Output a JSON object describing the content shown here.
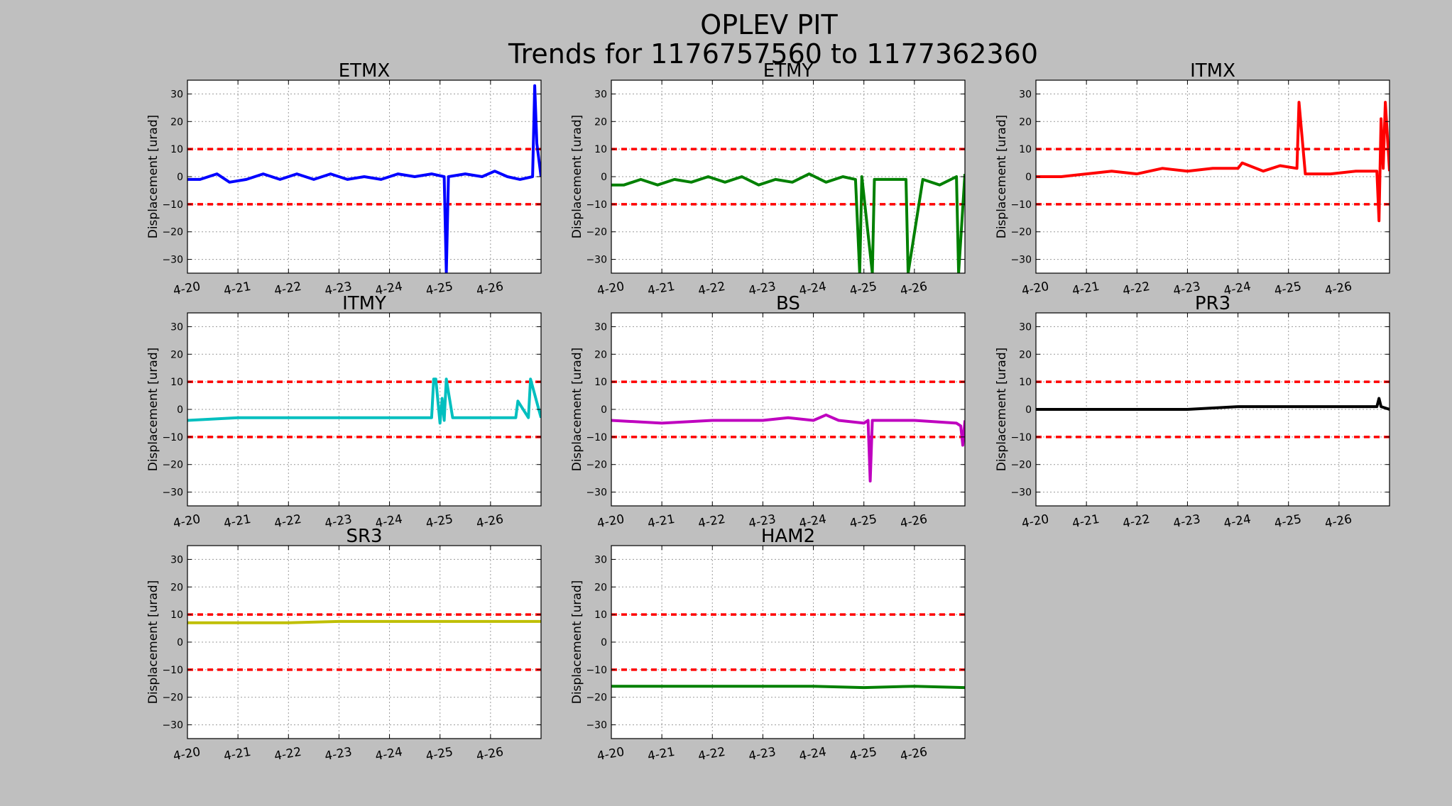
{
  "figure": {
    "title_line1": "OPLEV PIT",
    "title_line2": "Trends for 1176757560 to 1177362360",
    "background": "#bfbfbf",
    "threshold_color": "#ff0000"
  },
  "chart_data": [
    {
      "type": "line",
      "title": "ETMX",
      "color": "#0000ff",
      "ylabel": "Displacement [urad]",
      "ylim": [
        -35,
        35
      ],
      "xlim": [
        "4-20",
        "4-27"
      ],
      "yticks": [
        30,
        20,
        10,
        0,
        -10,
        -20,
        -30
      ],
      "xticks": [
        "4-20",
        "4-21",
        "4-22",
        "4-23",
        "4-24",
        "4-25",
        "4-26"
      ],
      "thresholds": [
        10,
        -10
      ],
      "grid": true,
      "x": [
        "4-20 00:00",
        "4-20 06:00",
        "4-20 14:00",
        "4-20 20:00",
        "4-21 04:00",
        "4-21 12:00",
        "4-21 20:00",
        "4-22 04:00",
        "4-22 12:00",
        "4-22 20:00",
        "4-23 04:00",
        "4-23 12:00",
        "4-23 20:00",
        "4-24 04:00",
        "4-24 12:00",
        "4-24 20:00",
        "4-25 02:00",
        "4-25 03:00",
        "4-25 04:00",
        "4-25 12:00",
        "4-25 20:00",
        "4-26 02:00",
        "4-26 08:00",
        "4-26 14:00",
        "4-26 20:00",
        "4-26 21:00",
        "4-26 22:00",
        "4-27 00:00"
      ],
      "y": [
        -1,
        -1,
        1,
        -2,
        -1,
        1,
        -1,
        1,
        -1,
        1,
        -1,
        0,
        -1,
        1,
        0,
        1,
        0,
        -35,
        0,
        1,
        0,
        2,
        0,
        -1,
        0,
        33,
        12,
        0
      ]
    },
    {
      "type": "line",
      "title": "ETMY",
      "color": "#008000",
      "ylabel": "Displacement [urad]",
      "ylim": [
        -35,
        35
      ],
      "xlim": [
        "4-20",
        "4-27"
      ],
      "yticks": [
        30,
        20,
        10,
        0,
        -10,
        -20,
        -30
      ],
      "xticks": [
        "4-20",
        "4-21",
        "4-22",
        "4-23",
        "4-24",
        "4-25",
        "4-26"
      ],
      "thresholds": [
        10,
        -10
      ],
      "grid": true,
      "x": [
        "4-20 00:00",
        "4-20 06:00",
        "4-20 14:00",
        "4-20 22:00",
        "4-21 06:00",
        "4-21 14:00",
        "4-21 22:00",
        "4-22 06:00",
        "4-22 14:00",
        "4-22 22:00",
        "4-23 06:00",
        "4-23 14:00",
        "4-23 22:00",
        "4-24 06:00",
        "4-24 14:00",
        "4-24 20:00",
        "4-24 22:00",
        "4-24 23:00",
        "4-25 04:00",
        "4-25 05:00",
        "4-25 20:00",
        "4-25 21:00",
        "4-26 04:00",
        "4-26 12:00",
        "4-26 20:00",
        "4-26 21:00",
        "4-27 00:00"
      ],
      "y": [
        -3,
        -3,
        -1,
        -3,
        -1,
        -2,
        0,
        -2,
        0,
        -3,
        -1,
        -2,
        1,
        -2,
        0,
        -1,
        -35,
        0,
        -35,
        -1,
        -1,
        -35,
        -1,
        -3,
        0,
        -35,
        1
      ]
    },
    {
      "type": "line",
      "title": "ITMX",
      "color": "#ff0000",
      "ylabel": "Displacement [urad]",
      "ylim": [
        -35,
        35
      ],
      "xlim": [
        "4-20",
        "4-27"
      ],
      "yticks": [
        30,
        20,
        10,
        0,
        -10,
        -20,
        -30
      ],
      "xticks": [
        "4-20",
        "4-21",
        "4-22",
        "4-23",
        "4-24",
        "4-25",
        "4-26"
      ],
      "thresholds": [
        10,
        -10
      ],
      "grid": true,
      "x": [
        "4-20 00:00",
        "4-20 12:00",
        "4-21 00:00",
        "4-21 12:00",
        "4-22 00:00",
        "4-22 12:00",
        "4-23 00:00",
        "4-23 12:00",
        "4-24 00:00",
        "4-24 02:00",
        "4-24 12:00",
        "4-24 20:00",
        "4-25 04:00",
        "4-25 05:00",
        "4-25 08:00",
        "4-25 20:00",
        "4-26 08:00",
        "4-26 18:00",
        "4-26 19:00",
        "4-26 20:00",
        "4-26 21:00",
        "4-26 22:00",
        "4-27 00:00"
      ],
      "y": [
        0,
        0,
        1,
        2,
        1,
        3,
        2,
        3,
        3,
        5,
        2,
        4,
        3,
        27,
        1,
        1,
        2,
        2,
        -16,
        21,
        3,
        27,
        2
      ]
    },
    {
      "type": "line",
      "title": "ITMY",
      "color": "#00bfbf",
      "ylabel": "Displacement [urad]",
      "ylim": [
        -35,
        35
      ],
      "xlim": [
        "4-20",
        "4-27"
      ],
      "yticks": [
        30,
        20,
        10,
        0,
        -10,
        -20,
        -30
      ],
      "xticks": [
        "4-20",
        "4-21",
        "4-22",
        "4-23",
        "4-24",
        "4-25",
        "4-26"
      ],
      "thresholds": [
        10,
        -10
      ],
      "grid": true,
      "x": [
        "4-20 00:00",
        "4-21 00:00",
        "4-22 00:00",
        "4-23 00:00",
        "4-24 00:00",
        "4-24 20:00",
        "4-24 21:00",
        "4-24 22:00",
        "4-25 00:00",
        "4-25 01:00",
        "4-25 02:00",
        "4-25 03:00",
        "4-25 06:00",
        "4-26 00:00",
        "4-26 12:00",
        "4-26 13:00",
        "4-26 18:00",
        "4-26 19:00",
        "4-27 00:00"
      ],
      "y": [
        -4,
        -3,
        -3,
        -3,
        -3,
        -3,
        11,
        11,
        -5,
        4,
        -4,
        11,
        -3,
        -3,
        -3,
        3,
        -3,
        11,
        -3
      ]
    },
    {
      "type": "line",
      "title": "BS",
      "color": "#bf00bf",
      "ylabel": "Displacement [urad]",
      "ylim": [
        -35,
        35
      ],
      "xlim": [
        "4-20",
        "4-27"
      ],
      "yticks": [
        30,
        20,
        10,
        0,
        -10,
        -20,
        -30
      ],
      "xticks": [
        "4-20",
        "4-21",
        "4-22",
        "4-23",
        "4-24",
        "4-25",
        "4-26"
      ],
      "thresholds": [
        10,
        -10
      ],
      "grid": true,
      "x": [
        "4-20 00:00",
        "4-21 00:00",
        "4-22 00:00",
        "4-23 00:00",
        "4-23 12:00",
        "4-24 00:00",
        "4-24 06:00",
        "4-24 12:00",
        "4-25 00:00",
        "4-25 02:00",
        "4-25 03:00",
        "4-25 04:00",
        "4-25 12:00",
        "4-26 00:00",
        "4-26 20:00",
        "4-26 22:00",
        "4-26 23:00",
        "4-27 00:00"
      ],
      "y": [
        -4,
        -5,
        -4,
        -4,
        -3,
        -4,
        -2,
        -4,
        -5,
        -4,
        -26,
        -4,
        -4,
        -4,
        -5,
        -6,
        -13,
        -4
      ]
    },
    {
      "type": "line",
      "title": "PR3",
      "color": "#000000",
      "ylabel": "Displacement [urad]",
      "ylim": [
        -35,
        35
      ],
      "xlim": [
        "4-20",
        "4-27"
      ],
      "yticks": [
        30,
        20,
        10,
        0,
        -10,
        -20,
        -30
      ],
      "xticks": [
        "4-20",
        "4-21",
        "4-22",
        "4-23",
        "4-24",
        "4-25",
        "4-26"
      ],
      "thresholds": [
        10,
        -10
      ],
      "grid": true,
      "x": [
        "4-20 00:00",
        "4-21 00:00",
        "4-22 00:00",
        "4-23 00:00",
        "4-24 00:00",
        "4-25 00:00",
        "4-26 00:00",
        "4-26 18:00",
        "4-26 19:00",
        "4-26 20:00",
        "4-27 00:00"
      ],
      "y": [
        0,
        0,
        0,
        0,
        1,
        1,
        1,
        1,
        4,
        1,
        0
      ]
    },
    {
      "type": "line",
      "title": "SR3",
      "color": "#bfbf00",
      "ylabel": "Displacement [urad]",
      "ylim": [
        -35,
        35
      ],
      "xlim": [
        "4-20",
        "4-27"
      ],
      "yticks": [
        30,
        20,
        10,
        0,
        -10,
        -20,
        -30
      ],
      "xticks": [
        "4-20",
        "4-21",
        "4-22",
        "4-23",
        "4-24",
        "4-25",
        "4-26"
      ],
      "thresholds": [
        10,
        -10
      ],
      "grid": true,
      "x": [
        "4-20 00:00",
        "4-21 00:00",
        "4-22 00:00",
        "4-23 00:00",
        "4-24 00:00",
        "4-25 00:00",
        "4-26 00:00",
        "4-27 00:00"
      ],
      "y": [
        7,
        7,
        7,
        7.5,
        7.5,
        7.5,
        7.5,
        7.5
      ]
    },
    {
      "type": "line",
      "title": "HAM2",
      "color": "#008000",
      "ylabel": "Displacement [urad]",
      "ylim": [
        -35,
        35
      ],
      "xlim": [
        "4-20",
        "4-27"
      ],
      "yticks": [
        30,
        20,
        10,
        0,
        -10,
        -20,
        -30
      ],
      "xticks": [
        "4-20",
        "4-21",
        "4-22",
        "4-23",
        "4-24",
        "4-25",
        "4-26"
      ],
      "thresholds": [
        10,
        -10
      ],
      "grid": true,
      "x": [
        "4-20 00:00",
        "4-21 00:00",
        "4-22 00:00",
        "4-23 00:00",
        "4-24 00:00",
        "4-25 00:00",
        "4-26 00:00",
        "4-27 00:00"
      ],
      "y": [
        -16,
        -16,
        -16,
        -16,
        -16,
        -16.5,
        -16,
        -16.5
      ]
    }
  ]
}
